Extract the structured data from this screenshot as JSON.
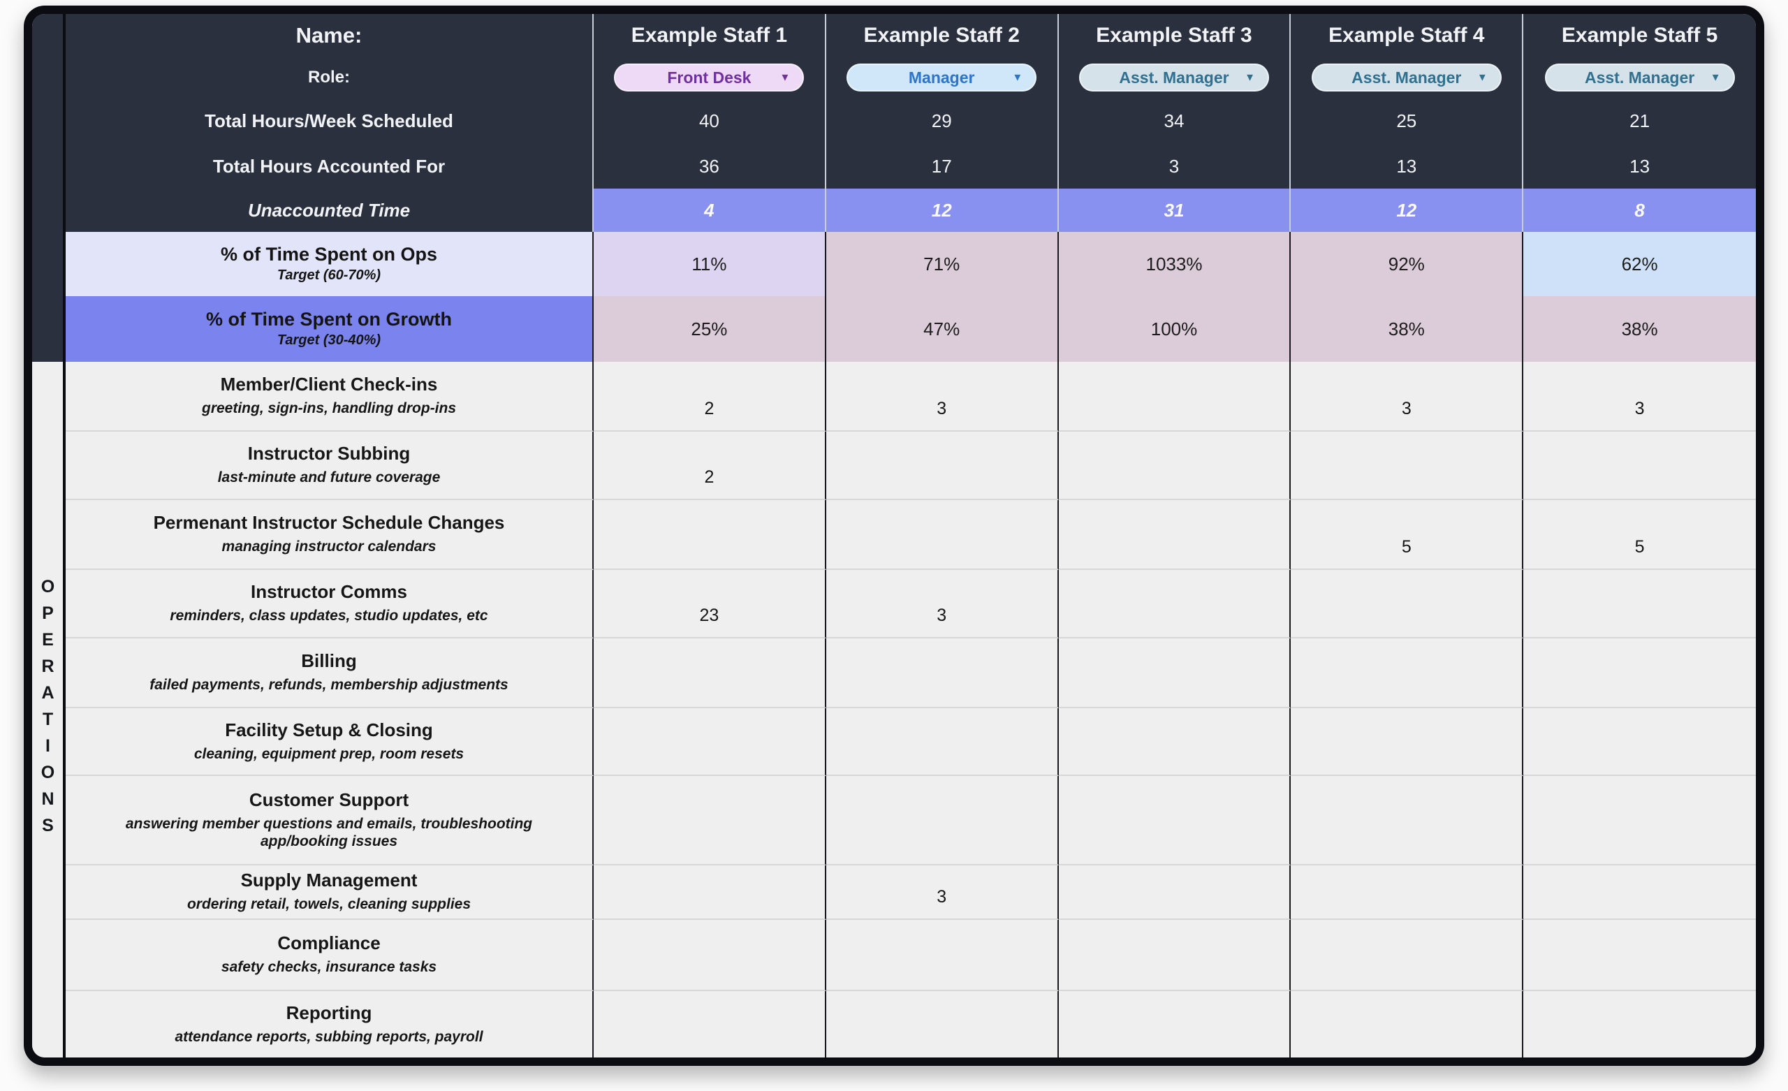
{
  "section_label": "OPERATIONS",
  "header": {
    "name_label": "Name:",
    "role_label": "Role:",
    "staff": [
      {
        "name": "Example Staff 1",
        "role": "Front Desk"
      },
      {
        "name": "Example Staff 2",
        "role": "Manager"
      },
      {
        "name": "Example Staff 3",
        "role": "Asst. Manager"
      },
      {
        "name": "Example Staff 4",
        "role": "Asst. Manager"
      },
      {
        "name": "Example Staff 5",
        "role": "Asst. Manager"
      }
    ]
  },
  "summary_rows": {
    "scheduled": {
      "label": "Total Hours/Week Scheduled",
      "values": [
        "40",
        "29",
        "34",
        "25",
        "21"
      ]
    },
    "accounted": {
      "label": "Total Hours Accounted For",
      "values": [
        "36",
        "17",
        "3",
        "13",
        "13"
      ]
    },
    "unaccounted": {
      "label": "Unaccounted Time",
      "values": [
        "4",
        "12",
        "31",
        "12",
        "8"
      ]
    }
  },
  "percent_rows": {
    "ops": {
      "title": "% of Time Spent on Ops",
      "target": "Target (60-70%)",
      "values": [
        "11%",
        "71%",
        "1033%",
        "92%",
        "62%"
      ]
    },
    "growth": {
      "title": "% of Time Spent on Growth",
      "target": "Target (30-40%)",
      "values": [
        "25%",
        "47%",
        "100%",
        "38%",
        "38%"
      ]
    }
  },
  "tasks": [
    {
      "title": "Member/Client Check-ins",
      "subtitle": "greeting, sign-ins, handling drop-ins",
      "values": [
        "2",
        "3",
        "",
        "3",
        "3"
      ]
    },
    {
      "title": "Instructor Subbing",
      "subtitle": "last-minute and future coverage",
      "values": [
        "2",
        "",
        "",
        "",
        ""
      ]
    },
    {
      "title": "Permenant Instructor Schedule Changes",
      "subtitle": "managing instructor calendars",
      "values": [
        "",
        "",
        "",
        "5",
        "5"
      ]
    },
    {
      "title": "Instructor Comms",
      "subtitle": "reminders, class updates, studio updates, etc",
      "values": [
        "23",
        "3",
        "",
        "",
        ""
      ]
    },
    {
      "title": "Billing",
      "subtitle": "failed payments, refunds, membership adjustments",
      "values": [
        "",
        "",
        "",
        "",
        ""
      ]
    },
    {
      "title": "Facility Setup & Closing",
      "subtitle": "cleaning, equipment prep, room resets",
      "values": [
        "",
        "",
        "",
        "",
        ""
      ]
    },
    {
      "title": "Customer Support",
      "subtitle": "answering member questions and emails, troubleshooting app/booking issues",
      "values": [
        "",
        "",
        "",
        "",
        ""
      ]
    },
    {
      "title": "Supply Management",
      "subtitle": "ordering retail, towels, cleaning supplies",
      "values": [
        "",
        "3",
        "",
        "",
        ""
      ]
    },
    {
      "title": "Compliance",
      "subtitle": "safety checks, insurance tasks",
      "values": [
        "",
        "",
        "",
        "",
        ""
      ]
    },
    {
      "title": "Reporting",
      "subtitle": "attendance reports, subbing reports, payroll",
      "values": [
        "",
        "",
        "",
        "",
        ""
      ]
    }
  ],
  "colors": {
    "header_bg": "#2b303e",
    "unaccounted_cell_bg": "#8890f0",
    "ops_label_bg": "#e2e5f9",
    "growth_label_bg": "#7b84ee",
    "cell_purple": "#dcd4f0",
    "cell_pink": "#dccbd8",
    "cell_blue": "#cfe1f8",
    "task_bg": "#efefef",
    "pill_pink_bg": "#eedaf6",
    "pill_pink_text": "#7030a0",
    "pill_blue_bg": "#cfe7f8",
    "pill_blue_text": "#2e74c9",
    "pill_teal_bg": "#d6e2e9",
    "pill_teal_text": "#31708f",
    "ops_cells": [
      "#dcd4f0",
      "#dccbd8",
      "#dccbd8",
      "#dccbd8",
      "#cfe1f8"
    ],
    "growth_cells": [
      "#dccbd8",
      "#dccbd8",
      "#dccbd8",
      "#dccbd8",
      "#dccbd8"
    ],
    "unaccounted_cells": [
      "#8890f0",
      "#8890f0",
      "#8890f0",
      "#8890f0",
      "#8890f0"
    ]
  }
}
